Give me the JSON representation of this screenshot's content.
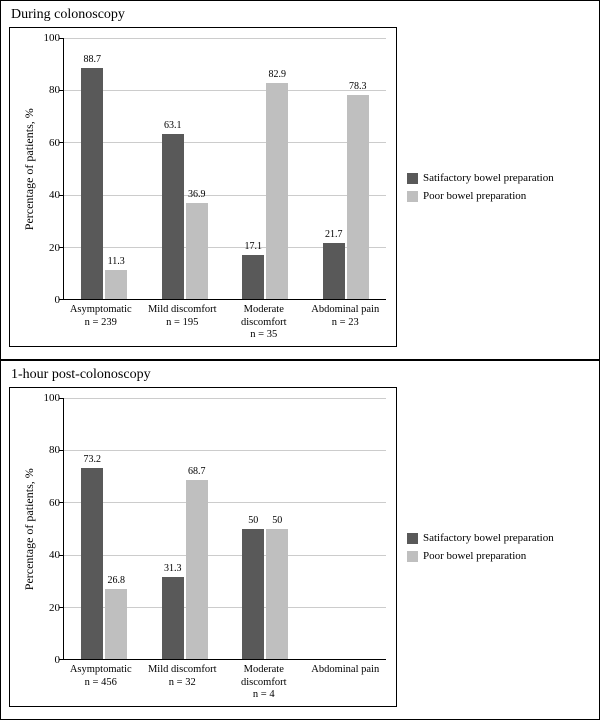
{
  "colors": {
    "satisfactory": "#595959",
    "poor": "#bfbfbf",
    "grid": "#cccccc",
    "axis": "#000000",
    "background": "#ffffff"
  },
  "legend": {
    "satisfactory": "Satifactory bowel preparation",
    "poor": "Poor bowel preparation"
  },
  "ylabel": "Percentage of patients, %",
  "ylim": [
    0,
    100
  ],
  "ytick_step": 20,
  "panels": [
    {
      "title": "During colonoscopy",
      "categories": [
        {
          "line1": "Asymptomatic",
          "line2": "n = 239"
        },
        {
          "line1": "Mild discomfort",
          "line2": "n = 195"
        },
        {
          "line1": "Moderate",
          "line1b": "discomfort",
          "line2": "n = 35"
        },
        {
          "line1": "Abdominal pain",
          "line2": "n = 23"
        }
      ],
      "series": {
        "satisfactory": [
          88.7,
          63.1,
          17.1,
          21.7
        ],
        "poor": [
          11.3,
          36.9,
          82.9,
          78.3
        ]
      }
    },
    {
      "title": "1-hour post-colonoscopy",
      "categories": [
        {
          "line1": "Asymptomatic",
          "line2": "n = 456"
        },
        {
          "line1": "Mild discomfort",
          "line2": "n = 32"
        },
        {
          "line1": "Moderate",
          "line1b": "discomfort",
          "line2": "n = 4"
        },
        {
          "line1": "Abdominal pain",
          "line2": ""
        }
      ],
      "series": {
        "satisfactory": [
          73.2,
          31.3,
          50.0,
          null
        ],
        "poor": [
          26.8,
          68.7,
          50.0,
          null
        ]
      }
    }
  ]
}
